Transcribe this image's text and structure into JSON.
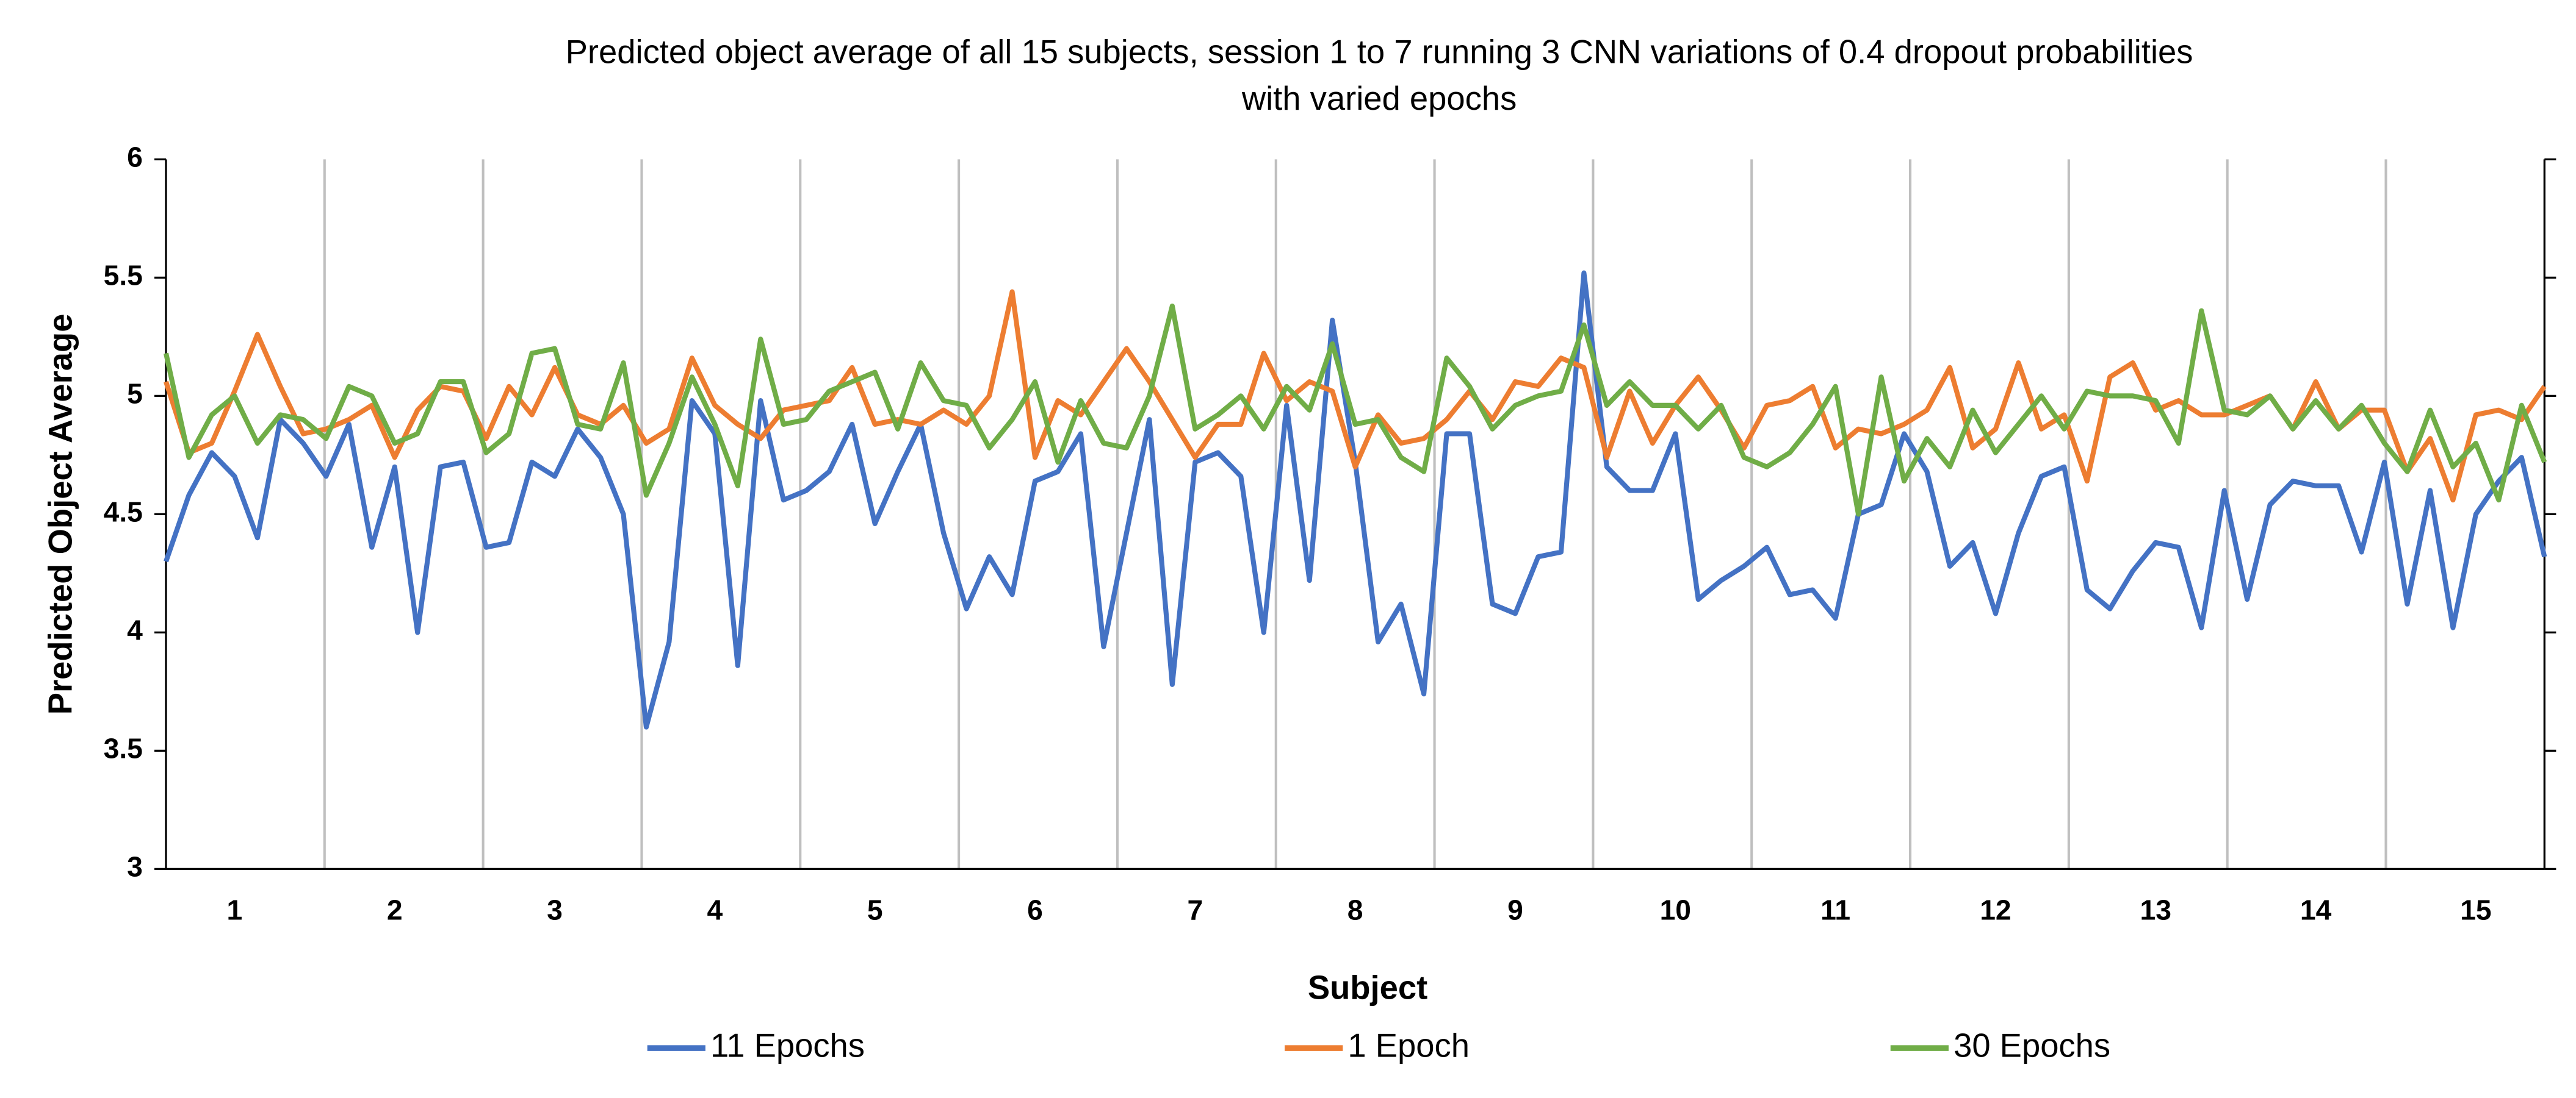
{
  "chart_data": {
    "type": "line",
    "title": "Predicted object average of all 15 subjects, session 1 to 7 running 3 CNN variations of 0.4 dropout probabilities with varied epochs",
    "x_label": "Subject",
    "y_label": "Predicted Object Average",
    "categories": [
      null,
      null,
      null,
      "1",
      null,
      null,
      null,
      null,
      null,
      null,
      "2",
      null,
      null,
      null,
      null,
      null,
      null,
      "3",
      null,
      null,
      null,
      null,
      null,
      null,
      "4",
      null,
      null,
      null,
      null,
      null,
      null,
      "5",
      null,
      null,
      null,
      null,
      null,
      null,
      "6",
      null,
      null,
      null,
      null,
      null,
      null,
      "7",
      null,
      null,
      null,
      null,
      null,
      null,
      "8",
      null,
      null,
      null,
      null,
      null,
      null,
      "9",
      null,
      null,
      null,
      null,
      null,
      null,
      "10",
      null,
      null,
      null,
      null,
      null,
      null,
      "11",
      null,
      null,
      null,
      null,
      null,
      null,
      "12",
      null,
      null,
      null,
      null,
      null,
      null,
      "13",
      null,
      null,
      null,
      null,
      null,
      null,
      "14",
      null,
      null,
      null,
      null,
      null,
      null,
      "15",
      null,
      null,
      null
    ],
    "series": [
      {
        "name": "11 Epochs",
        "color": "#4472c4",
        "values": [
          4.3,
          4.58,
          4.76,
          4.66,
          4.4,
          4.9,
          4.8,
          4.66,
          4.88,
          4.36,
          4.7,
          4.0,
          4.7,
          4.72,
          4.36,
          4.38,
          4.72,
          4.66,
          4.86,
          4.74,
          4.5,
          3.6,
          3.96,
          4.98,
          4.84,
          3.86,
          4.98,
          4.56,
          4.6,
          4.68,
          4.88,
          4.46,
          4.68,
          4.88,
          4.42,
          4.1,
          4.32,
          4.16,
          4.64,
          4.68,
          4.84,
          3.94,
          4.42,
          4.9,
          3.78,
          4.72,
          4.76,
          4.66,
          4.0,
          4.96,
          4.22,
          5.32,
          4.72,
          3.96,
          4.12,
          3.74,
          4.84,
          4.84,
          4.12,
          4.08,
          4.32,
          4.34,
          5.52,
          4.7,
          4.6,
          4.6,
          4.84,
          4.14,
          4.22,
          4.28,
          4.36,
          4.16,
          4.18,
          4.06,
          4.5,
          4.54,
          4.84,
          4.68,
          4.28,
          4.38,
          4.08,
          4.42,
          4.66,
          4.7,
          4.18,
          4.1,
          4.26,
          4.38,
          4.36,
          4.02,
          4.6,
          4.14,
          4.54,
          4.64,
          4.62,
          4.62,
          4.34,
          4.72,
          4.12,
          4.6,
          4.02,
          4.5,
          4.64,
          4.74,
          4.32
        ]
      },
      {
        "name": "1 Epoch",
        "color": "#ed7d31",
        "values": [
          5.06,
          4.76,
          4.8,
          5.02,
          5.26,
          5.04,
          4.84,
          4.86,
          4.9,
          4.96,
          4.74,
          4.94,
          5.04,
          5.02,
          4.82,
          5.04,
          4.92,
          5.12,
          4.92,
          4.88,
          4.96,
          4.8,
          4.86,
          5.16,
          4.96,
          4.88,
          4.82,
          4.94,
          4.96,
          4.98,
          5.12,
          4.88,
          4.9,
          4.88,
          4.94,
          4.88,
          5.0,
          5.44,
          4.74,
          4.98,
          4.92,
          5.06,
          5.2,
          5.06,
          4.9,
          4.74,
          4.88,
          4.88,
          5.18,
          4.98,
          5.06,
          5.02,
          4.7,
          4.92,
          4.8,
          4.82,
          4.9,
          5.02,
          4.9,
          5.06,
          5.04,
          5.16,
          5.12,
          4.74,
          5.02,
          4.8,
          4.96,
          5.08,
          4.94,
          4.78,
          4.96,
          4.98,
          5.04,
          4.78,
          4.86,
          4.84,
          4.88,
          4.94,
          5.12,
          4.78,
          4.86,
          5.14,
          4.86,
          4.92,
          4.64,
          5.08,
          5.14,
          4.94,
          4.98,
          4.92,
          4.92,
          4.96,
          5.0,
          4.86,
          5.06,
          4.86,
          4.94,
          4.94,
          4.68,
          4.82,
          4.56,
          4.92,
          4.94,
          4.9,
          5.04
        ]
      },
      {
        "name": "30 Epochs",
        "color": "#70ad47",
        "values": [
          5.18,
          4.74,
          4.92,
          5.0,
          4.8,
          4.92,
          4.9,
          4.82,
          5.04,
          5.0,
          4.8,
          4.84,
          5.06,
          5.06,
          4.76,
          4.84,
          5.18,
          5.2,
          4.88,
          4.86,
          5.14,
          4.58,
          4.8,
          5.08,
          4.88,
          4.62,
          5.24,
          4.88,
          4.9,
          5.02,
          5.06,
          5.1,
          4.86,
          5.14,
          4.98,
          4.96,
          4.78,
          4.9,
          5.06,
          4.72,
          4.98,
          4.8,
          4.78,
          5.0,
          5.38,
          4.86,
          4.92,
          5.0,
          4.86,
          5.04,
          4.94,
          5.22,
          4.88,
          4.9,
          4.74,
          4.68,
          5.16,
          5.04,
          4.86,
          4.96,
          5.0,
          5.02,
          5.3,
          4.96,
          5.06,
          4.96,
          4.96,
          4.86,
          4.96,
          4.74,
          4.7,
          4.76,
          4.88,
          5.04,
          4.5,
          5.08,
          4.64,
          4.82,
          4.7,
          4.94,
          4.76,
          4.88,
          5.0,
          4.86,
          5.02,
          5.0,
          5.0,
          4.98,
          4.8,
          5.36,
          4.94,
          4.92,
          5.0,
          4.86,
          4.98,
          4.86,
          4.96,
          4.8,
          4.68,
          4.94,
          4.7,
          4.8,
          4.56,
          4.96,
          4.72
        ]
      }
    ],
    "ylim": [
      3,
      6
    ],
    "yticks": [
      3,
      3.5,
      4,
      4.5,
      5,
      5.5,
      6
    ],
    "legend": "bottom"
  }
}
